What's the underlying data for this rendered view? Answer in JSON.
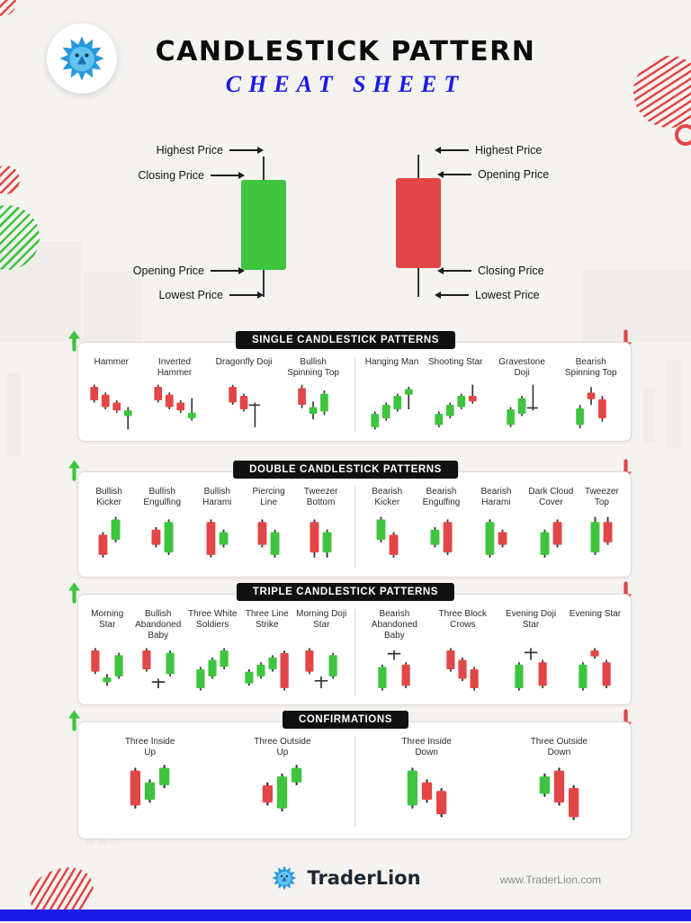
{
  "page": {
    "title_line1": "CANDLESTICK PATTERN",
    "title_line2": "CHEAT SHEET"
  },
  "colors": {
    "green": "#3fc43f",
    "red": "#e24646",
    "blue": "#1b1be6",
    "wick": "#333333"
  },
  "anatomy": {
    "bullish": {
      "labels": [
        "Highest Price",
        "Closing Price",
        "Opening Price",
        "Lowest Price"
      ]
    },
    "bearish": {
      "labels": [
        "Highest Price",
        "Opening Price",
        "Closing Price",
        "Lowest Price"
      ]
    }
  },
  "sections": [
    {
      "header": "SINGLE CANDLESTICK PATTERNS",
      "left": {
        "patterns": [
          {
            "name": "Hammer",
            "candles": [
              [
                1,
                "r",
                2,
                4,
                16,
                18
              ],
              [
                11,
                "r",
                9,
                11,
                22,
                24
              ],
              [
                21,
                "r",
                16,
                18,
                25,
                27
              ],
              [
                31,
                "g",
                22,
                25,
                30,
                42
              ]
            ]
          },
          {
            "name": "Inverted Hammer",
            "candles": [
              [
                1,
                "r",
                2,
                4,
                16,
                18
              ],
              [
                11,
                "r",
                9,
                11,
                22,
                24
              ],
              [
                21,
                "r",
                16,
                18,
                25,
                27
              ],
              [
                31,
                "g",
                14,
                27,
                32,
                34
              ]
            ]
          },
          {
            "name": "Dragonfly Doji",
            "candles": [
              [
                1,
                "r",
                2,
                4,
                18,
                20
              ],
              [
                11,
                "r",
                10,
                12,
                24,
                26
              ],
              [
                21,
                "g",
                18,
                19.5,
                21,
                40
              ]
            ]
          },
          {
            "name": "Bullish Spinning Top",
            "candles": [
              [
                1,
                "r",
                2,
                5,
                20,
                23
              ],
              [
                11,
                "g",
                17,
                22,
                28,
                33
              ],
              [
                21,
                "g",
                7,
                10,
                26,
                29
              ]
            ]
          }
        ]
      },
      "right": {
        "patterns": [
          {
            "name": "Hanging Man",
            "candles": [
              [
                1,
                "g",
                26,
                28,
                40,
                42
              ],
              [
                11,
                "g",
                18,
                20,
                32,
                34
              ],
              [
                21,
                "g",
                10,
                12,
                24,
                26
              ],
              [
                31,
                "g",
                4,
                6,
                11,
                24
              ]
            ]
          },
          {
            "name": "Shooting Star",
            "candles": [
              [
                1,
                "g",
                26,
                28,
                38,
                40
              ],
              [
                11,
                "g",
                18,
                20,
                30,
                32
              ],
              [
                21,
                "g",
                10,
                12,
                22,
                24
              ],
              [
                31,
                "r",
                2,
                12,
                17,
                19
              ]
            ]
          },
          {
            "name": "Gravestone Doji",
            "candles": [
              [
                1,
                "g",
                22,
                24,
                38,
                40
              ],
              [
                11,
                "g",
                12,
                14,
                28,
                30
              ],
              [
                21,
                "g",
                2,
                22,
                23.5,
                25
              ]
            ]
          },
          {
            "name": "Bearish Spinning Top",
            "candles": [
              [
                1,
                "g",
                20,
                23,
                38,
                41
              ],
              [
                11,
                "r",
                4,
                9,
                15,
                20
              ],
              [
                21,
                "r",
                12,
                15,
                32,
                35
              ]
            ]
          }
        ]
      }
    },
    {
      "header": "DOUBLE CANDLESTICK PATTERNS",
      "left": {
        "patterns": [
          {
            "name": "Bullish Kicker",
            "candles": [
              [
                1,
                "r",
                16,
                18,
                34,
                36
              ],
              [
                11,
                "g",
                4,
                6,
                22,
                24
              ]
            ]
          },
          {
            "name": "Bullish Engulfing",
            "candles": [
              [
                1,
                "r",
                12,
                14,
                26,
                28
              ],
              [
                11,
                "g",
                6,
                8,
                32,
                34
              ]
            ]
          },
          {
            "name": "Bullish Harami",
            "candles": [
              [
                1,
                "r",
                6,
                8,
                34,
                36
              ],
              [
                11,
                "g",
                14,
                16,
                26,
                28
              ]
            ]
          },
          {
            "name": "Piercing Line",
            "candles": [
              [
                1,
                "r",
                6,
                8,
                26,
                28
              ],
              [
                11,
                "g",
                14,
                16,
                34,
                36
              ]
            ]
          },
          {
            "name": "Tweezer Bottom",
            "candles": [
              [
                1,
                "r",
                6,
                8,
                32,
                36
              ],
              [
                11,
                "g",
                14,
                16,
                32,
                36
              ]
            ]
          }
        ]
      },
      "right": {
        "patterns": [
          {
            "name": "Bearish Kicker",
            "candles": [
              [
                1,
                "g",
                4,
                6,
                22,
                24
              ],
              [
                11,
                "r",
                16,
                18,
                34,
                36
              ]
            ]
          },
          {
            "name": "Bearish Engulfing",
            "candles": [
              [
                1,
                "g",
                12,
                14,
                26,
                28
              ],
              [
                11,
                "r",
                6,
                8,
                32,
                34
              ]
            ]
          },
          {
            "name": "Bearish Harami",
            "candles": [
              [
                1,
                "g",
                6,
                8,
                34,
                36
              ],
              [
                11,
                "r",
                14,
                16,
                26,
                28
              ]
            ]
          },
          {
            "name": "Dark Cloud Cover",
            "candles": [
              [
                1,
                "g",
                14,
                16,
                34,
                36
              ],
              [
                11,
                "r",
                6,
                8,
                26,
                28
              ]
            ]
          },
          {
            "name": "Tweezer Top",
            "candles": [
              [
                1,
                "g",
                4,
                8,
                32,
                34
              ],
              [
                11,
                "r",
                4,
                8,
                24,
                26
              ]
            ]
          }
        ]
      }
    },
    {
      "header": "TRIPLE CANDLESTICK PATTERNS",
      "left": {
        "patterns": [
          {
            "name": "Morning Star",
            "candles": [
              [
                1,
                "r",
                4,
                6,
                24,
                26
              ],
              [
                11,
                "g",
                26,
                29,
                33,
                36
              ],
              [
                21,
                "g",
                8,
                10,
                28,
                30
              ]
            ]
          },
          {
            "name": "Bullish Abandoned Baby",
            "candles": [
              [
                1,
                "r",
                4,
                6,
                22,
                24
              ],
              [
                11,
                "g",
                30,
                32,
                33.5,
                38
              ],
              [
                21,
                "g",
                6,
                8,
                26,
                28
              ]
            ]
          },
          {
            "name": "Three White Soldiers",
            "candles": [
              [
                1,
                "g",
                20,
                22,
                38,
                40
              ],
              [
                11,
                "g",
                12,
                14,
                28,
                30
              ],
              [
                21,
                "g",
                4,
                6,
                20,
                22
              ]
            ]
          },
          {
            "name": "Three Line Strike",
            "candles": [
              [
                1,
                "g",
                22,
                24,
                34,
                36
              ],
              [
                11,
                "g",
                16,
                18,
                28,
                30
              ],
              [
                21,
                "g",
                10,
                12,
                22,
                24
              ],
              [
                31,
                "r",
                6,
                8,
                38,
                40
              ]
            ]
          },
          {
            "name": "Morning Doji Star",
            "candles": [
              [
                1,
                "r",
                4,
                6,
                24,
                26
              ],
              [
                11,
                "g",
                28,
                31,
                32.5,
                38
              ],
              [
                21,
                "g",
                8,
                10,
                28,
                30
              ]
            ]
          }
        ]
      },
      "right": {
        "patterns": [
          {
            "name": "Bearish Abandoned Baby",
            "candles": [
              [
                1,
                "g",
                18,
                20,
                38,
                40
              ],
              [
                11,
                "g",
                6,
                8,
                9.5,
                14
              ],
              [
                21,
                "r",
                16,
                18,
                36,
                38
              ]
            ]
          },
          {
            "name": "Three Block Crows",
            "candles": [
              [
                1,
                "r",
                4,
                6,
                22,
                24
              ],
              [
                11,
                "r",
                12,
                14,
                30,
                32
              ],
              [
                21,
                "r",
                20,
                22,
                38,
                40
              ]
            ]
          },
          {
            "name": "Evening Doji Star",
            "candles": [
              [
                1,
                "g",
                16,
                18,
                38,
                40
              ],
              [
                11,
                "g",
                4,
                7,
                8.5,
                14
              ],
              [
                21,
                "r",
                14,
                16,
                36,
                38
              ]
            ]
          },
          {
            "name": "Evening Star",
            "candles": [
              [
                1,
                "g",
                16,
                18,
                38,
                40
              ],
              [
                11,
                "r",
                4,
                6,
                11,
                13
              ],
              [
                21,
                "r",
                14,
                16,
                36,
                38
              ]
            ]
          }
        ]
      }
    },
    {
      "header": "CONFIRMATIONS",
      "left": {
        "patterns": [
          {
            "name": "Three Inside Up",
            "candles": [
              [
                1,
                "r",
                4,
                6,
                30,
                32
              ],
              [
                11,
                "g",
                12,
                14,
                26,
                28
              ],
              [
                21,
                "g",
                2,
                4,
                16,
                18
              ]
            ]
          },
          {
            "name": "Three Outside Up",
            "candles": [
              [
                1,
                "r",
                14,
                16,
                28,
                30
              ],
              [
                11,
                "g",
                8,
                10,
                32,
                34
              ],
              [
                21,
                "g",
                2,
                4,
                14,
                16
              ]
            ]
          }
        ]
      },
      "right": {
        "patterns": [
          {
            "name": "Three Inside Down",
            "candles": [
              [
                1,
                "g",
                4,
                6,
                30,
                32
              ],
              [
                11,
                "r",
                12,
                14,
                26,
                28
              ],
              [
                21,
                "r",
                18,
                20,
                36,
                38
              ]
            ]
          },
          {
            "name": "Three Outside Down",
            "candles": [
              [
                1,
                "g",
                8,
                10,
                22,
                24
              ],
              [
                11,
                "r",
                4,
                6,
                28,
                30
              ],
              [
                21,
                "r",
                16,
                18,
                38,
                40
              ]
            ]
          }
        ]
      }
    }
  ],
  "footer": {
    "brand": "TraderLion",
    "url": "www.TraderLion.com"
  }
}
